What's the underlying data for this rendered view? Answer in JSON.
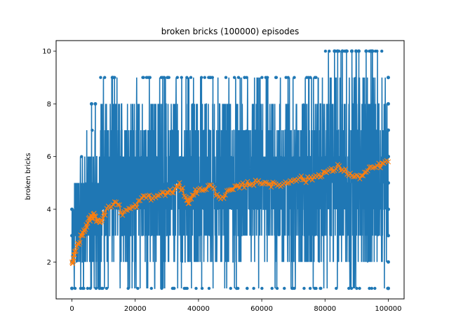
{
  "chart_data": {
    "type": "line",
    "title": "broken bricks (100000) episodes",
    "xlabel": "",
    "ylabel": "broken bricks",
    "xlim": [
      -5000,
      105000
    ],
    "ylim": [
      0.6,
      10.4
    ],
    "xticks": [
      0,
      20000,
      40000,
      60000,
      80000,
      100000
    ],
    "xtick_labels": [
      "0",
      "20000",
      "40000",
      "60000",
      "80000",
      "100000"
    ],
    "yticks": [
      2,
      4,
      6,
      8,
      10
    ],
    "ytick_labels": [
      "2",
      "4",
      "6",
      "8",
      "10"
    ],
    "grid": false,
    "series": [
      {
        "style": "line-with-dot-markers",
        "color": "#1f77b4",
        "description_values": "per-episode broken bricks, integer values ranging 1 to 10 over 100000 episodes",
        "bands": [
          {
            "x": [
              0,
              800
            ],
            "min": 1,
            "max": 4
          },
          {
            "x": [
              800,
              4000
            ],
            "min": 1,
            "max": 6
          },
          {
            "x": [
              4000,
              9000
            ],
            "min": 1,
            "max": 7
          },
          {
            "x": [
              9000,
              80000
            ],
            "min": 1,
            "max": 9
          },
          {
            "x": [
              80000,
              100000
            ],
            "min": 1,
            "max": 10
          }
        ],
        "spikes": [
          {
            "x": 12800,
            "y": 9
          },
          {
            "x": 6200,
            "y": 8
          },
          {
            "x": 7400,
            "y": 8
          },
          {
            "x": 83000,
            "y": 10
          },
          {
            "x": 84000,
            "y": 10
          },
          {
            "x": 85500,
            "y": 10
          },
          {
            "x": 86800,
            "y": 10
          },
          {
            "x": 88500,
            "y": 10
          },
          {
            "x": 89800,
            "y": 10
          },
          {
            "x": 90700,
            "y": 10
          },
          {
            "x": 93000,
            "y": 10
          },
          {
            "x": 94500,
            "y": 10
          },
          {
            "x": 95000,
            "y": 10
          }
        ]
      },
      {
        "style": "line-with-x-markers",
        "color": "#ff7f0e",
        "x": [
          0,
          500,
          1000,
          2000,
          3000,
          4000,
          5000,
          6000,
          7000,
          8000,
          9000,
          10000,
          12000,
          14000,
          16000,
          18000,
          20000,
          22000,
          24000,
          26000,
          28000,
          30000,
          32000,
          34000,
          36000,
          37000,
          38000,
          40000,
          42000,
          44000,
          46000,
          48000,
          50000,
          52000,
          54000,
          56000,
          58000,
          60000,
          62000,
          64000,
          66000,
          68000,
          70000,
          72000,
          74000,
          76000,
          78000,
          80000,
          82000,
          84000,
          86000,
          88000,
          90000,
          92000,
          94000,
          96000,
          98000,
          100000
        ],
        "values": [
          2.0,
          2.1,
          2.4,
          2.7,
          3.0,
          3.2,
          3.5,
          3.7,
          3.75,
          3.6,
          3.55,
          3.8,
          4.1,
          4.3,
          3.85,
          4.0,
          4.1,
          4.4,
          4.5,
          4.4,
          4.6,
          4.6,
          4.7,
          4.9,
          4.5,
          4.2,
          4.6,
          4.7,
          4.8,
          4.9,
          4.5,
          4.5,
          4.7,
          4.8,
          4.9,
          5.0,
          5.0,
          5.05,
          5.0,
          4.9,
          4.95,
          5.0,
          5.15,
          5.2,
          5.1,
          5.2,
          5.3,
          5.4,
          5.45,
          5.6,
          5.5,
          5.3,
          5.2,
          5.3,
          5.5,
          5.6,
          5.7,
          5.8
        ]
      }
    ]
  }
}
